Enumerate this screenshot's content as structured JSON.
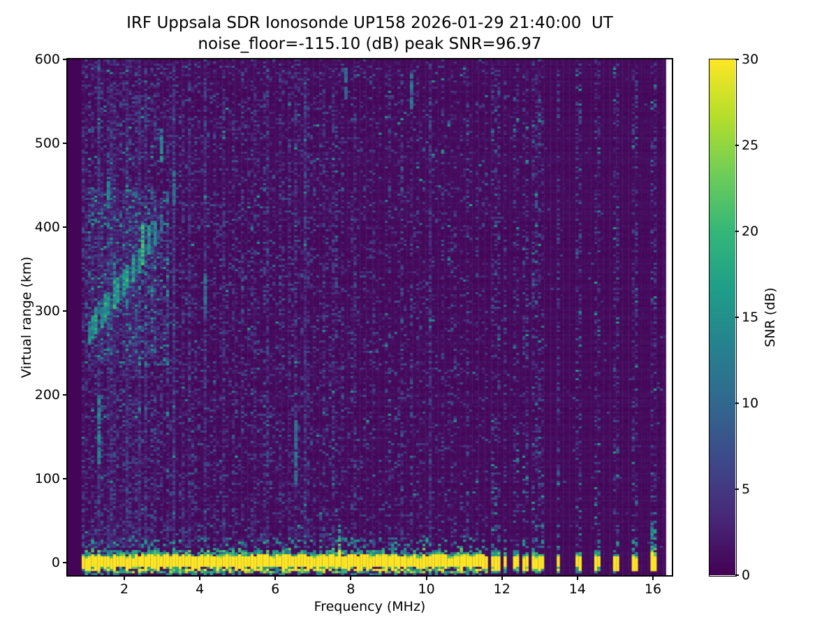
{
  "figure": {
    "background": "#ffffff",
    "frame_color": "#000000"
  },
  "chart_data": {
    "type": "heatmap",
    "title": "IRF Uppsala SDR Ionosonde UP158 2026-01-29 21:40:00  UT",
    "subtitle": "noise_floor=-115.10 (dB) peak SNR=96.97",
    "xlabel": "Frequency (MHz)",
    "ylabel": "Virtual range (km)",
    "xlim": [
      0.5,
      16.5
    ],
    "ylim": [
      -15,
      600
    ],
    "x_ticks": [
      2,
      4,
      6,
      8,
      10,
      12,
      14,
      16
    ],
    "y_ticks": [
      0,
      100,
      200,
      300,
      400,
      500,
      600
    ],
    "colorbar": {
      "label": "SNR (dB)",
      "ticks": [
        0,
        5,
        10,
        15,
        20,
        25,
        30
      ],
      "vmin": 0,
      "vmax": 30,
      "colormap": "viridis"
    },
    "colormap_stops": [
      [
        0.0,
        "#440154"
      ],
      [
        0.111,
        "#482878"
      ],
      [
        0.222,
        "#3e4989"
      ],
      [
        0.333,
        "#31688e"
      ],
      [
        0.444,
        "#26828e"
      ],
      [
        0.556,
        "#1f9e89"
      ],
      [
        0.667,
        "#35b779"
      ],
      [
        0.778,
        "#6ece58"
      ],
      [
        0.889,
        "#b5de2b"
      ],
      [
        1.0,
        "#fde725"
      ]
    ],
    "sweep": {
      "f_start_mhz": 0.87,
      "f_end_mhz": 16.35,
      "continuous_band_end_mhz": 11.62
    },
    "ground_band": {
      "center_km": 0,
      "solid_km": [
        -6,
        7
      ],
      "fringe_top_km": 16,
      "bottom_km": -14,
      "peak_snr_db": 30
    },
    "spot_frequencies": [
      {
        "f": 11.85,
        "cap_km": 14,
        "width_mhz": 0.2
      },
      {
        "f": 12.08,
        "cap_km": 12,
        "width_mhz": 0.13
      },
      {
        "f": 12.34,
        "cap_km": 15,
        "width_mhz": 0.14
      },
      {
        "f": 12.6,
        "cap_km": 13,
        "width_mhz": 0.14
      },
      {
        "f": 12.86,
        "cap_km": 12,
        "width_mhz": 0.13
      },
      {
        "f": 13.06,
        "cap_km": 11,
        "width_mhz": 0.12
      },
      {
        "f": 13.5,
        "cap_km": 10,
        "width_mhz": 0.12
      },
      {
        "f": 14.0,
        "cap_km": 12,
        "width_mhz": 0.13
      },
      {
        "f": 14.52,
        "cap_km": 14,
        "width_mhz": 0.12
      },
      {
        "f": 15.02,
        "cap_km": 10,
        "width_mhz": 0.12
      },
      {
        "f": 15.52,
        "cap_km": 11,
        "width_mhz": 0.12
      },
      {
        "f": 16.0,
        "cap_km": 38,
        "width_mhz": 0.14
      }
    ],
    "spikes": [
      {
        "f": 7.72,
        "yellow_top_km": 14,
        "green_top_km": 30,
        "dash_top_km": 44
      },
      {
        "f": 16.0,
        "yellow_top_km": 12,
        "green_top_km": 38,
        "dash_top_km": 48
      }
    ],
    "echo_trace": {
      "region": {
        "f_mhz": [
          0.95,
          3.2
        ],
        "km": [
          235,
          445
        ]
      },
      "streaks": [
        {
          "f": 1.08,
          "km": 262,
          "len": 20,
          "snr": 13
        },
        {
          "f": 1.18,
          "km": 268,
          "len": 26,
          "snr": 14
        },
        {
          "f": 1.28,
          "km": 274,
          "len": 30,
          "snr": 16
        },
        {
          "f": 1.38,
          "km": 281,
          "len": 24,
          "snr": 15
        },
        {
          "f": 1.49,
          "km": 288,
          "len": 30,
          "snr": 17
        },
        {
          "f": 1.6,
          "km": 296,
          "len": 26,
          "snr": 15
        },
        {
          "f": 1.72,
          "km": 303,
          "len": 34,
          "snr": 17
        },
        {
          "f": 1.84,
          "km": 311,
          "len": 28,
          "snr": 16
        },
        {
          "f": 1.97,
          "km": 319,
          "len": 30,
          "snr": 15
        },
        {
          "f": 2.1,
          "km": 328,
          "len": 26,
          "snr": 17
        },
        {
          "f": 2.24,
          "km": 337,
          "len": 30,
          "snr": 16
        },
        {
          "f": 2.38,
          "km": 347,
          "len": 28,
          "snr": 15
        },
        {
          "f": 2.52,
          "km": 357,
          "len": 46,
          "snr": 18
        },
        {
          "f": 2.66,
          "km": 368,
          "len": 34,
          "snr": 15
        },
        {
          "f": 2.8,
          "km": 380,
          "len": 26,
          "snr": 13
        },
        {
          "f": 2.95,
          "km": 393,
          "len": 20,
          "snr": 11
        }
      ]
    },
    "bright_streaks": [
      {
        "f": 6.53,
        "km_range": [
          95,
          168
        ],
        "snr": 10
      },
      {
        "f": 9.6,
        "km_range": [
          545,
          582
        ],
        "snr": 11
      },
      {
        "f": 2.98,
        "km_range": [
          478,
          520
        ],
        "snr": 13
      },
      {
        "f": 1.32,
        "km_range": [
          118,
          200
        ],
        "snr": 13
      },
      {
        "f": 4.15,
        "km_range": [
          300,
          345
        ],
        "snr": 10
      },
      {
        "f": 7.9,
        "km_range": [
          555,
          590
        ],
        "snr": 10
      },
      {
        "f": 1.6,
        "km_range": [
          425,
          460
        ],
        "snr": 12
      },
      {
        "f": 3.3,
        "km_range": [
          430,
          466
        ],
        "snr": 11
      }
    ],
    "rfi_stripes_mhz": [
      1.35,
      1.62,
      1.75,
      2.12,
      2.35,
      2.58,
      2.82,
      3.12,
      3.32,
      3.55,
      3.78,
      4.12,
      4.38,
      4.65,
      4.88,
      5.15,
      5.45,
      5.78,
      6.12,
      6.35,
      6.55,
      6.82,
      7.05,
      7.32,
      7.58,
      7.78,
      8.08,
      8.35,
      8.62,
      9.02,
      9.32,
      9.58,
      9.82,
      10.12,
      10.45,
      10.72,
      11.05,
      11.35,
      11.58
    ],
    "noise": {
      "seed": 20260129,
      "density_at_1mhz": 0.4,
      "density_falloff_mhz": 8.5,
      "quiet_density": 0.012,
      "spot_column_density": 0.38
    }
  }
}
